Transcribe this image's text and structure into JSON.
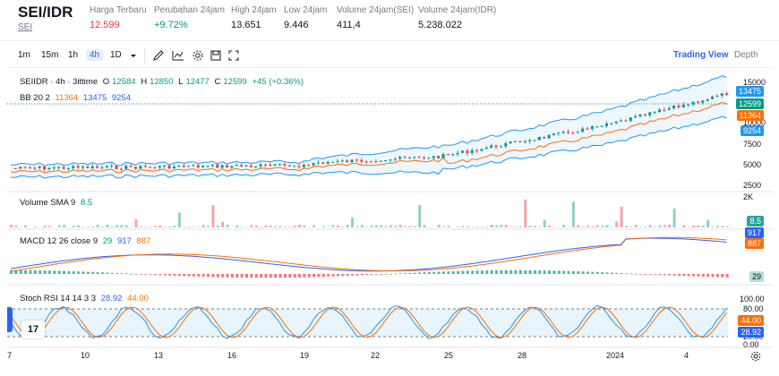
{
  "ticker": {
    "pair": "SEI/IDR",
    "base": "SEI",
    "stats": [
      {
        "label": "Harga Terbaru",
        "value": "12.599",
        "color": "#f23645"
      },
      {
        "label": "Perubahan 24jam",
        "value": "+9.72%",
        "color": "#089981"
      },
      {
        "label": "High 24jam",
        "value": "13.651",
        "color": "#131722"
      },
      {
        "label": "Low 24jam",
        "value": "9.446",
        "color": "#131722"
      },
      {
        "label": "Volume 24jam(SEI)",
        "value": "411,4",
        "color": "#131722"
      },
      {
        "label": "Volume 24jam(IDR)",
        "value": "5.238.022",
        "color": "#131722"
      }
    ]
  },
  "toolbar": {
    "timeframes": [
      "1m",
      "15m",
      "1h",
      "4h",
      "1D"
    ],
    "active_timeframe": "4h",
    "icons": [
      "chevron-down-icon",
      "pencil-icon",
      "indicator-icon",
      "settings-icon",
      "save-icon",
      "fullscreen-icon"
    ],
    "tabs": [
      "Trading View",
      "Depth"
    ],
    "active_tab": "Trading View"
  },
  "main_pane": {
    "symbol": "SEIIDR · 4h · 3ittime",
    "ohlc": {
      "o_label": "O",
      "o": "12584",
      "h_label": "H",
      "h": "12850",
      "l_label": "L",
      "l": "12477",
      "c_label": "C",
      "c": "12599",
      "change": "+45 (+0.36%)"
    },
    "bb_label": "BB 20 2",
    "bb_values": [
      "11364",
      "13475",
      "9254"
    ],
    "axis": [
      "15000",
      "10000",
      "7500",
      "5000",
      "2500"
    ],
    "tags": {
      "upper": "13475",
      "price": "12599",
      "basis": "11364",
      "lower": "9254"
    }
  },
  "volume_pane": {
    "label": "Volume SMA 9",
    "value": "8.5",
    "axis_top": "2K",
    "tag": "8.5"
  },
  "macd_pane": {
    "label": "MACD 12 26 close 9",
    "values": [
      "29",
      "917",
      "887"
    ],
    "tags": [
      "917",
      "887",
      "29"
    ]
  },
  "stoch_pane": {
    "label": "Stoch RSI 14 14 3 3",
    "values": [
      "28.92",
      "44.00"
    ],
    "axis": [
      "100.00",
      "80.00",
      "20.00",
      "0.00"
    ],
    "tags": [
      "44.00",
      "28.92"
    ]
  },
  "time_axis": [
    "7",
    "10",
    "13",
    "16",
    "19",
    "22",
    "25",
    "28",
    "2024",
    "4"
  ],
  "colors": {
    "up": "#089981",
    "down": "#f23645",
    "bb_band": "#2196f3",
    "bb_basis": "#ff6d00",
    "macd": "#2962ff",
    "signal": "#ff6d00"
  }
}
